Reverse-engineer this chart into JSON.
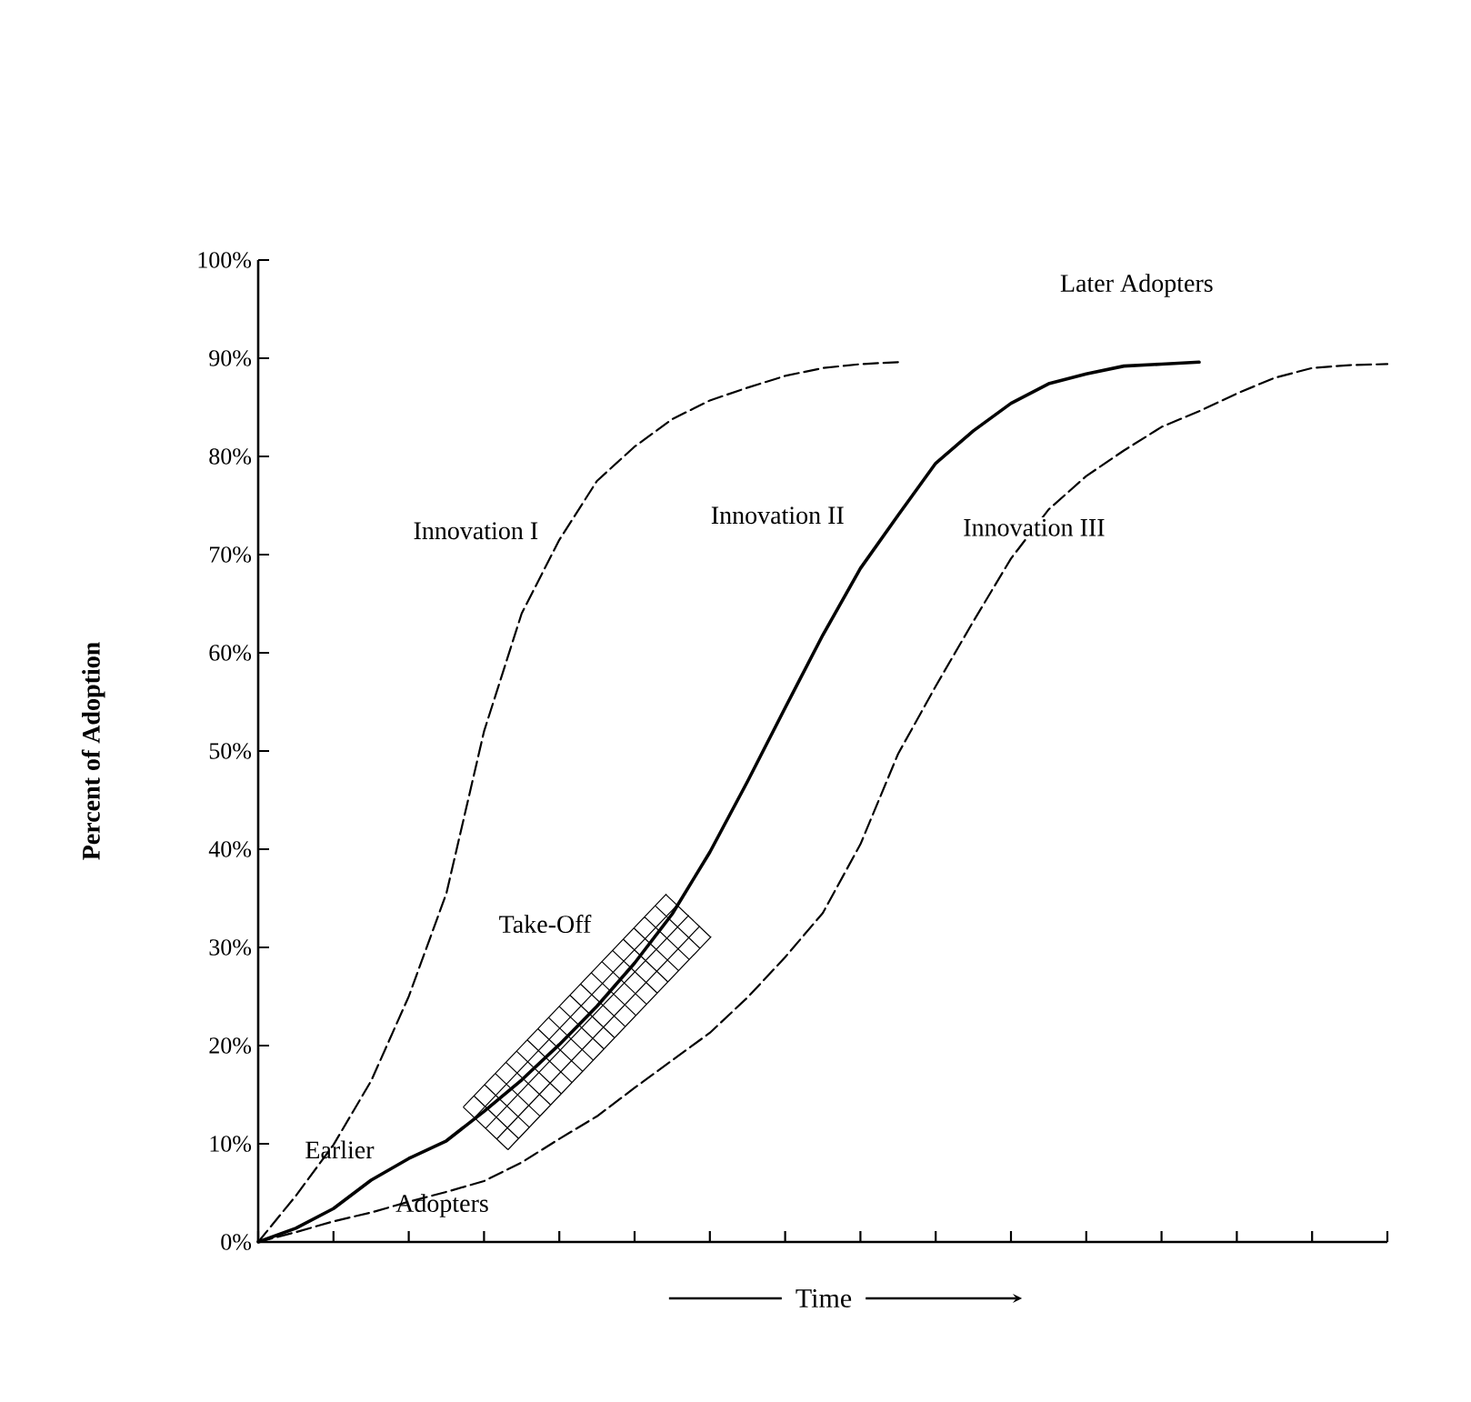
{
  "chart_data": {
    "type": "line",
    "xlabel": "Time",
    "ylabel": "Percent of Adoption",
    "ylim": [
      0,
      100
    ],
    "categories": [
      null,
      null,
      null,
      null,
      null,
      null,
      null,
      null,
      null,
      null,
      null,
      null,
      null,
      null,
      null,
      null,
      null,
      null,
      null,
      null,
      null,
      null,
      null,
      null,
      null,
      null,
      null,
      null,
      null,
      null,
      null
    ],
    "yticks": [
      {
        "value": 0,
        "label": "0%"
      },
      {
        "value": 10,
        "label": "10%"
      },
      {
        "value": 20,
        "label": "20%"
      },
      {
        "value": 30,
        "label": "30%"
      },
      {
        "value": 40,
        "label": "40%"
      },
      {
        "value": 50,
        "label": "50%"
      },
      {
        "value": 60,
        "label": "60%"
      },
      {
        "value": 70,
        "label": "70%"
      },
      {
        "value": 80,
        "label": "80%"
      },
      {
        "value": 90,
        "label": "90%"
      },
      {
        "value": 100,
        "label": "100%"
      }
    ],
    "tick_labels": "y",
    "series": [
      {
        "name": "Innovation I",
        "color": "#000000",
        "line_style": "dashed",
        "values": [
          0,
          4.7,
          9.9,
          16.4,
          25,
          35.5,
          52,
          64,
          71.5,
          77.5,
          81,
          83.8,
          85.7,
          87,
          88.2,
          89,
          89.4,
          89.6,
          null,
          null,
          null,
          null,
          null,
          null,
          null,
          null,
          null,
          null,
          null,
          null,
          null
        ]
      },
      {
        "name": "Innovation II",
        "color": "#000000",
        "line_style": "solid",
        "values": [
          0,
          1.4,
          3.4,
          6.3,
          8.5,
          10.3,
          13.3,
          16.5,
          20.1,
          24,
          28.4,
          33.4,
          39.7,
          46.9,
          54.4,
          61.8,
          68.6,
          74,
          79.3,
          82.6,
          85.4,
          87.4,
          88.4,
          89.2,
          89.4,
          89.6,
          null,
          null,
          null,
          null,
          null
        ]
      },
      {
        "name": "Innovation III",
        "color": "#000000",
        "line_style": "dashed",
        "values": [
          0,
          1.0,
          2.1,
          3.0,
          4.1,
          5.1,
          6.2,
          8.1,
          10.5,
          12.8,
          15.7,
          18.5,
          21.3,
          24.9,
          29,
          33.5,
          40.5,
          49.7,
          56.6,
          63.2,
          69.6,
          74.6,
          78,
          80.6,
          83,
          84.6,
          86.4,
          88,
          89,
          89.3,
          89.4
        ]
      }
    ],
    "annotations": [
      "Later Adopters",
      "Take-Off",
      "Earlier",
      "Adopters"
    ]
  }
}
